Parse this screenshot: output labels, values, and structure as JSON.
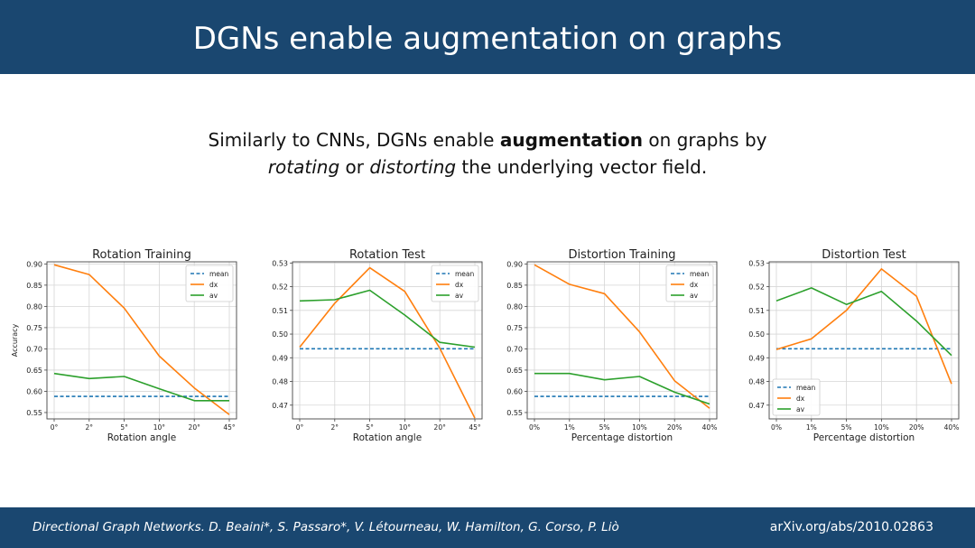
{
  "slide": {
    "title": "DGNs enable augmentation on graphs",
    "subtitle_parts": {
      "p1": "Similarly to CNNs, DGNs enable ",
      "p2": "augmentation",
      "p3": " on graphs by",
      "p4": "rotating",
      "p5": " or ",
      "p6": "distorting",
      "p7": " the underlying vector field."
    }
  },
  "footer": {
    "citation": "Directional Graph Networks. D. Beaini*, S. Passaro*, V. Létourneau, W. Hamilton, G. Corso, P. Liò",
    "arxiv": "arXiv.org/abs/2010.02863"
  },
  "colors": {
    "header": "#1a4770",
    "mean": "#1f77b4",
    "dx": "#ff7f0e",
    "av": "#2ca02c"
  },
  "chart_data": [
    {
      "type": "line",
      "title": "Rotation Training",
      "xlabel": "Rotation angle",
      "ylabel": "Accuracy",
      "categories": [
        "0°",
        "2°",
        "5°",
        "10°",
        "20°",
        "45°"
      ],
      "ylim": [
        0.535,
        0.905
      ],
      "yticks": [
        0.55,
        0.6,
        0.65,
        0.7,
        0.75,
        0.8,
        0.85,
        0.9
      ],
      "ytick_labels": [
        "0.55",
        "0.60",
        "0.65",
        "0.70",
        "0.75",
        "0.80",
        "0.85",
        "0.90"
      ],
      "grid": true,
      "legend": "top-right",
      "series": [
        {
          "name": "mean",
          "values": [
            0.588,
            0.588,
            0.588,
            0.588,
            0.588,
            0.588
          ],
          "style": "dashed"
        },
        {
          "name": "dx",
          "values": [
            0.898,
            0.875,
            0.796,
            0.683,
            0.608,
            0.545
          ]
        },
        {
          "name": "av",
          "values": [
            0.642,
            0.63,
            0.635,
            0.606,
            0.578,
            0.578
          ]
        }
      ]
    },
    {
      "type": "line",
      "title": "Rotation Test",
      "xlabel": "Rotation angle",
      "ylabel": "",
      "categories": [
        "0°",
        "2°",
        "5°",
        "10°",
        "20°",
        "45°"
      ],
      "ylim": [
        0.4642,
        0.5305
      ],
      "yticks": [
        0.47,
        0.48,
        0.49,
        0.5,
        0.51,
        0.52,
        0.53
      ],
      "ytick_labels": [
        "0.47",
        "0.48",
        "0.49",
        "0.50",
        "0.51",
        "0.52",
        "0.53"
      ],
      "grid": true,
      "legend": "top-right",
      "series": [
        {
          "name": "mean",
          "values": [
            0.4938,
            0.4938,
            0.4938,
            0.4938,
            0.4938,
            0.4938
          ],
          "style": "dashed"
        },
        {
          "name": "dx",
          "values": [
            0.4945,
            0.513,
            0.528,
            0.518,
            0.494,
            0.4645
          ]
        },
        {
          "name": "av",
          "values": [
            0.514,
            0.5145,
            0.5185,
            0.508,
            0.4965,
            0.4945
          ]
        }
      ]
    },
    {
      "type": "line",
      "title": "Distortion Training",
      "xlabel": "Percentage distortion",
      "ylabel": "",
      "categories": [
        "0%",
        "1%",
        "5%",
        "10%",
        "20%",
        "40%"
      ],
      "ylim": [
        0.535,
        0.905
      ],
      "yticks": [
        0.55,
        0.6,
        0.65,
        0.7,
        0.75,
        0.8,
        0.85,
        0.9
      ],
      "ytick_labels": [
        "0.55",
        "0.60",
        "0.65",
        "0.70",
        "0.75",
        "0.80",
        "0.85",
        "0.90"
      ],
      "grid": true,
      "legend": "top-right",
      "series": [
        {
          "name": "mean",
          "values": [
            0.588,
            0.588,
            0.588,
            0.588,
            0.588,
            0.588
          ],
          "style": "dashed"
        },
        {
          "name": "dx",
          "values": [
            0.898,
            0.852,
            0.83,
            0.74,
            0.625,
            0.56
          ]
        },
        {
          "name": "av",
          "values": [
            0.642,
            0.642,
            0.627,
            0.635,
            0.598,
            0.57
          ]
        }
      ]
    },
    {
      "type": "line",
      "title": "Distortion Test",
      "xlabel": "Percentage distortion",
      "ylabel": "",
      "categories": [
        "0%",
        "1%",
        "5%",
        "10%",
        "20%",
        "40%"
      ],
      "ylim": [
        0.4642,
        0.5305
      ],
      "yticks": [
        0.47,
        0.48,
        0.49,
        0.5,
        0.51,
        0.52,
        0.53
      ],
      "ytick_labels": [
        "0.47",
        "0.48",
        "0.49",
        "0.50",
        "0.51",
        "0.52",
        "0.53"
      ],
      "grid": true,
      "legend": "bottom-left",
      "series": [
        {
          "name": "mean",
          "values": [
            0.4938,
            0.4938,
            0.4938,
            0.4938,
            0.4938,
            0.4938
          ],
          "style": "dashed"
        },
        {
          "name": "dx",
          "values": [
            0.4935,
            0.498,
            0.51,
            0.5275,
            0.516,
            0.479
          ]
        },
        {
          "name": "av",
          "values": [
            0.514,
            0.5195,
            0.5125,
            0.518,
            0.5055,
            0.491
          ]
        }
      ]
    }
  ]
}
